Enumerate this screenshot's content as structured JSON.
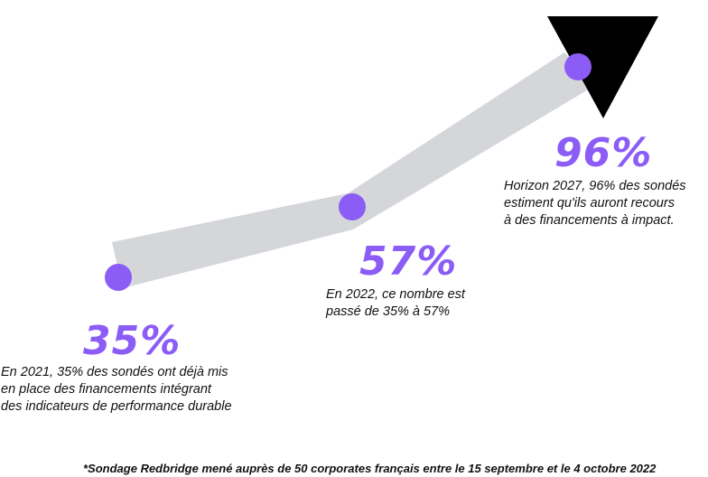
{
  "chart_data": {
    "type": "line",
    "categories": [
      "2021",
      "2022",
      "2027"
    ],
    "values": [
      35,
      57,
      96
    ],
    "unit": "%",
    "points": [
      {
        "value_label": "35%",
        "description": [
          "En 2021, 35% des sondés ont déjà mis",
          "en place des financements intégrant",
          "des indicateurs de performance durable"
        ]
      },
      {
        "value_label": "57%",
        "description": [
          "En 2022, ce nombre est",
          "passé de 35% à 57%"
        ]
      },
      {
        "value_label": "96%",
        "description": [
          "Horizon 2027, 96% des sondés",
          "estiment qu'ils auront recours",
          "à des financements à impact."
        ]
      }
    ],
    "footnote": "*Sondage Redbridge mené auprès de 50 corporates français entre le 15 septembre et le 4 octobre 2022"
  },
  "colors": {
    "accent": "#8b5cf6",
    "band": "#d4d6da",
    "arrow": "#000000",
    "text": "#111111"
  }
}
